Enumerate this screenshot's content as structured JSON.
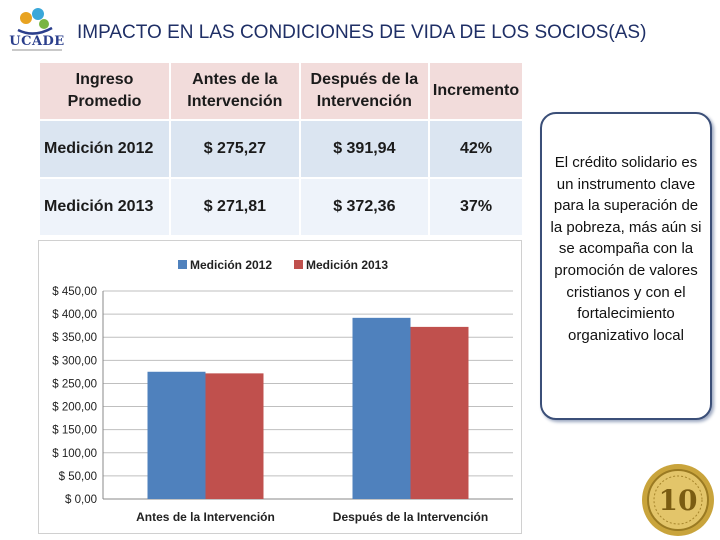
{
  "header": {
    "logo_text": "UCADE",
    "title": "IMPACTO EN LAS CONDICIONES DE VIDA DE LOS SOCIOS(AS)"
  },
  "table": {
    "columns": [
      "Ingreso Promedio",
      "Antes de la Intervención",
      "Después de la Intervención",
      "Incremento"
    ],
    "rows": [
      [
        "Medición 2012",
        "$ 275,27",
        "$ 391,94",
        "42%"
      ],
      [
        "Medición 2013",
        "$ 271,81",
        "$ 372,36",
        "37%"
      ]
    ]
  },
  "chart_data": {
    "type": "bar",
    "categories": [
      "Antes de la Intervención",
      "Después de la Intervención"
    ],
    "series": [
      {
        "name": "Medición 2012",
        "values": [
          275.27,
          391.94
        ],
        "color": "#4f81bd"
      },
      {
        "name": "Medición 2013",
        "values": [
          271.81,
          372.36
        ],
        "color": "#c0504d"
      }
    ],
    "ylim": [
      0,
      450
    ],
    "yticks": [
      0,
      50,
      100,
      150,
      200,
      250,
      300,
      350,
      400,
      450
    ],
    "ytick_labels": [
      "$ 0,00",
      "$ 50,00",
      "$ 100,00",
      "$ 150,00",
      "$ 200,00",
      "$ 250,00",
      "$ 300,00",
      "$ 350,00",
      "$ 400,00",
      "$ 450,00"
    ],
    "grid": true,
    "legend": "top"
  },
  "callout": {
    "text": "El crédito solidario es un instrumento clave para la superación de la pobreza, más aún si se acompaña con la promoción de valores cristianos y con el fortalecimiento organizativo local"
  },
  "seal": {
    "numeral": "10",
    "color": "#b8912e"
  },
  "colors": {
    "title": "#1f2f66",
    "header_fill": "#f2dcdb",
    "row1_fill": "#dbe5f1",
    "row2_fill": "#eef3fa"
  }
}
